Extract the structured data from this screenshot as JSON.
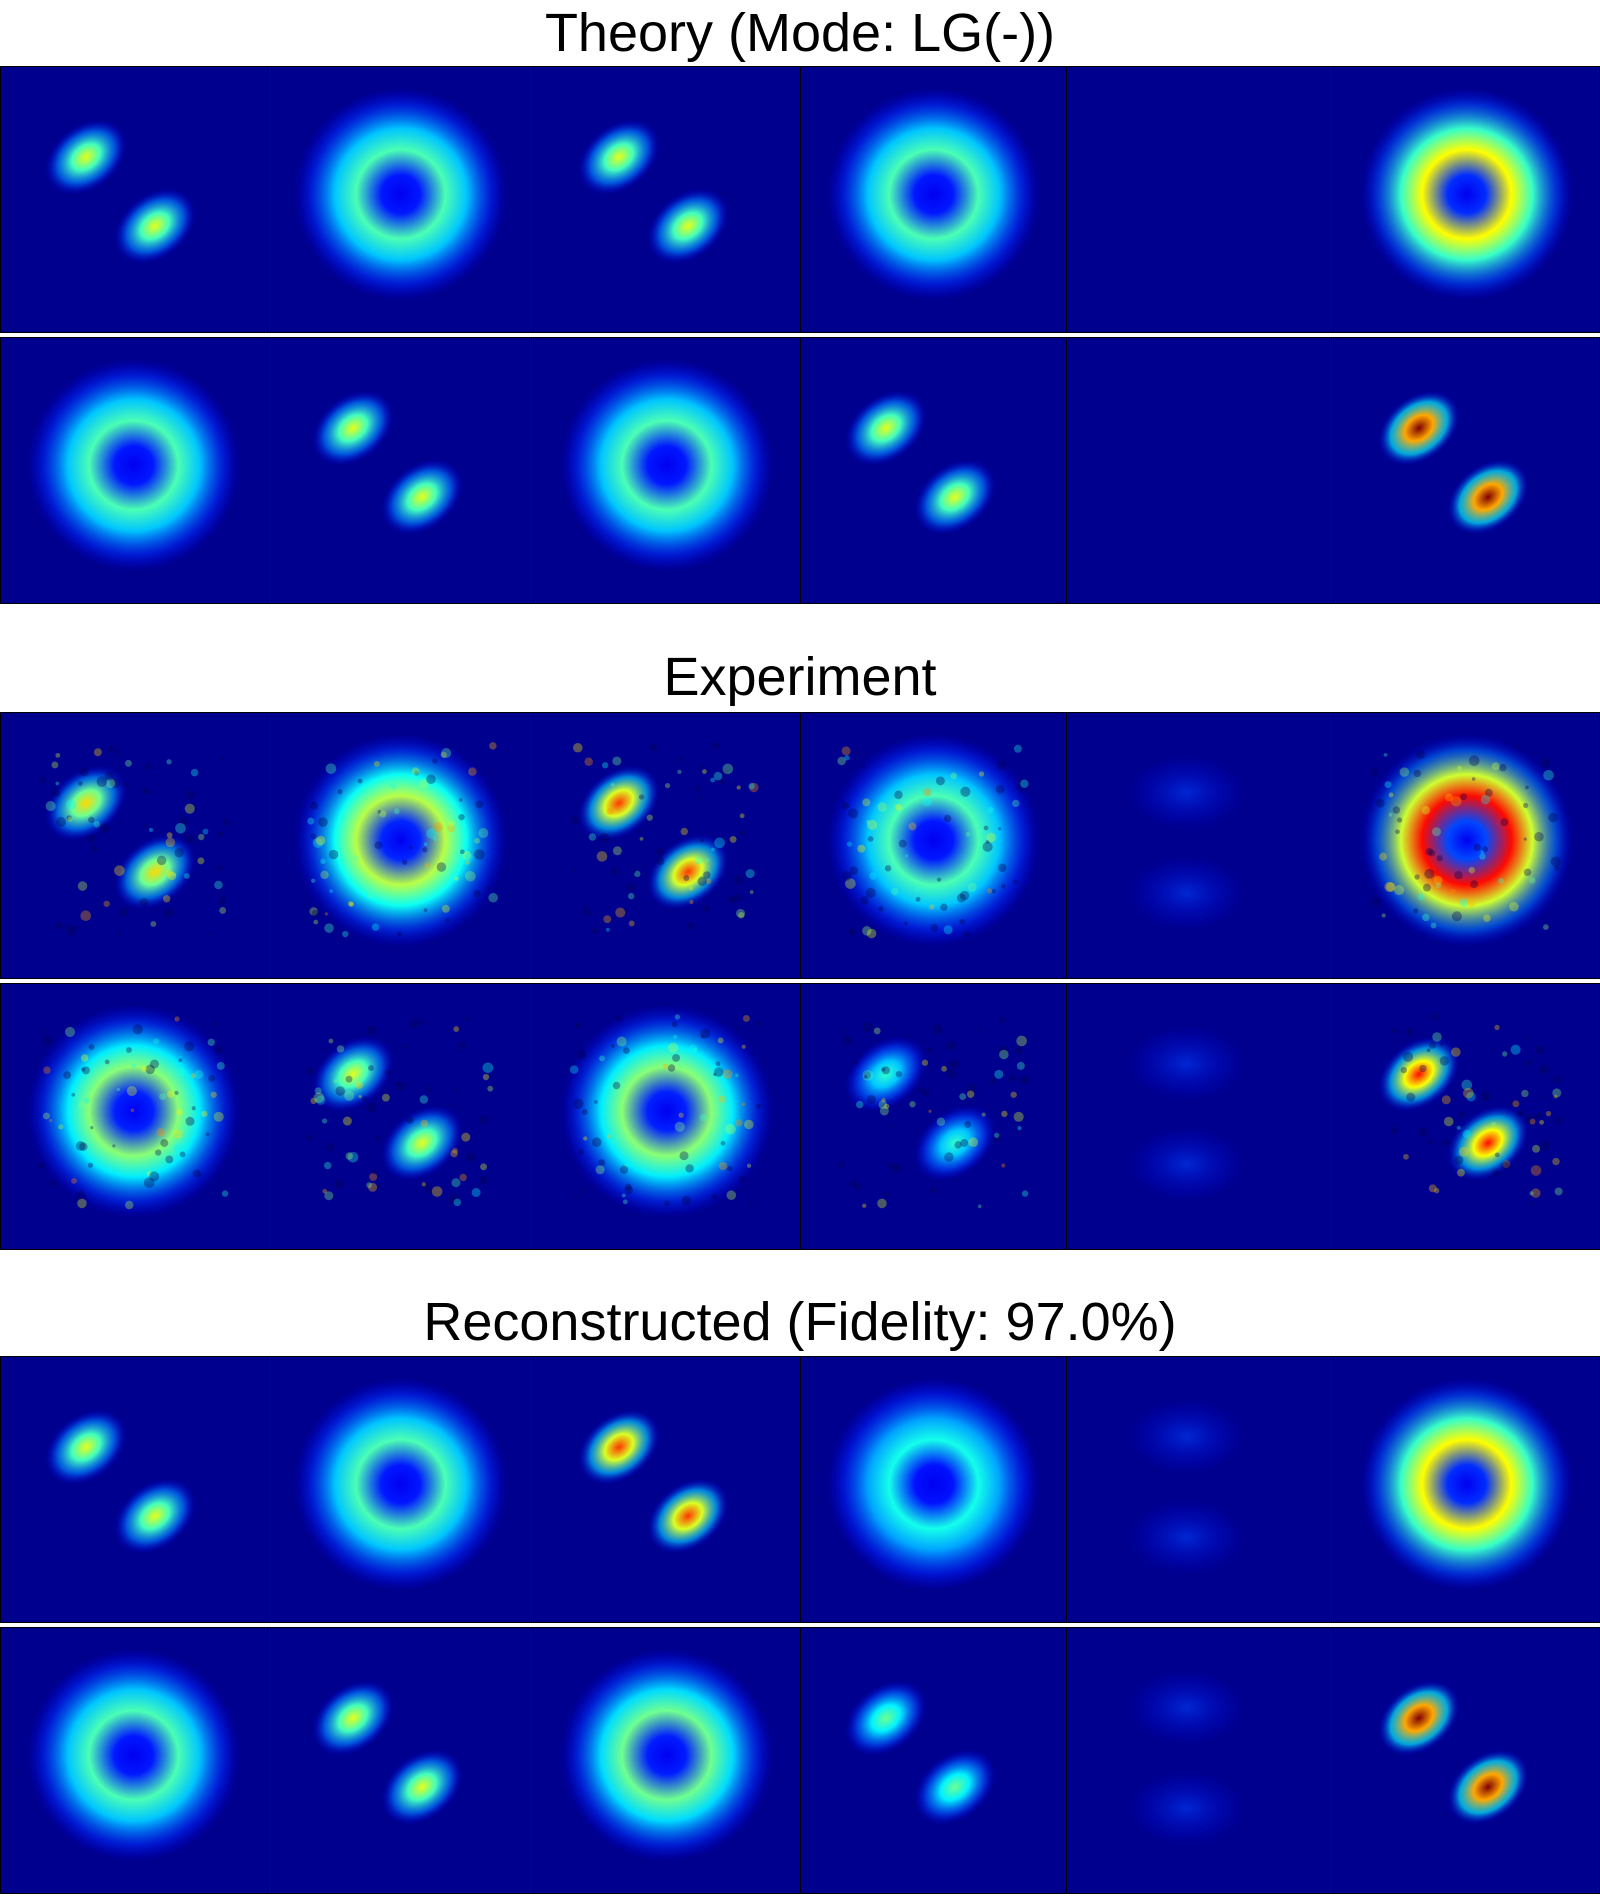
{
  "sections": [
    {
      "title": "Theory (Mode: LG(-))",
      "rows": [
        {
          "panels": [
            {
              "pattern": "lobes",
              "peak": 0.55
            },
            {
              "pattern": "donut",
              "peak": 0.38
            },
            {
              "pattern": "lobes",
              "peak": 0.55
            },
            {
              "pattern": "donut",
              "peak": 0.38
            },
            {
              "pattern": "dark",
              "peak": 0.0
            },
            {
              "pattern": "donut",
              "peak": 0.58
            }
          ]
        },
        {
          "panels": [
            {
              "pattern": "donut",
              "peak": 0.38
            },
            {
              "pattern": "lobes",
              "peak": 0.55
            },
            {
              "pattern": "donut",
              "peak": 0.38
            },
            {
              "pattern": "lobes",
              "peak": 0.55
            },
            {
              "pattern": "dark",
              "peak": 0.0
            },
            {
              "pattern": "lobes",
              "peak": 1.0
            }
          ]
        }
      ]
    },
    {
      "title": "Experiment",
      "rows": [
        {
          "panels": [
            {
              "pattern": "lobes",
              "peak": 0.62,
              "noisy": true
            },
            {
              "pattern": "donut",
              "peak": 0.5,
              "noisy": true
            },
            {
              "pattern": "lobes",
              "peak": 0.8,
              "noisy": true
            },
            {
              "pattern": "donut",
              "peak": 0.38,
              "noisy": true
            },
            {
              "pattern": "faint",
              "peak": 0.06
            },
            {
              "pattern": "donut",
              "peak": 0.85,
              "noisy": true
            }
          ]
        },
        {
          "panels": [
            {
              "pattern": "donut",
              "peak": 0.45,
              "noisy": true
            },
            {
              "pattern": "lobes",
              "peak": 0.55,
              "noisy": true
            },
            {
              "pattern": "donut",
              "peak": 0.45,
              "noisy": true
            },
            {
              "pattern": "lobes",
              "peak": 0.35,
              "noisy": true
            },
            {
              "pattern": "faint",
              "peak": 0.05
            },
            {
              "pattern": "lobes",
              "peak": 0.85,
              "noisy": true
            }
          ]
        }
      ]
    },
    {
      "title": "Reconstructed (Fidelity: 97.0%)",
      "rows": [
        {
          "panels": [
            {
              "pattern": "lobes",
              "peak": 0.55
            },
            {
              "pattern": "donut",
              "peak": 0.38
            },
            {
              "pattern": "lobes",
              "peak": 0.8
            },
            {
              "pattern": "donut",
              "peak": 0.32
            },
            {
              "pattern": "faint",
              "peak": 0.03
            },
            {
              "pattern": "donut",
              "peak": 0.58
            }
          ]
        },
        {
          "panels": [
            {
              "pattern": "donut",
              "peak": 0.38
            },
            {
              "pattern": "lobes",
              "peak": 0.55
            },
            {
              "pattern": "donut",
              "peak": 0.42
            },
            {
              "pattern": "lobes",
              "peak": 0.42
            },
            {
              "pattern": "faint",
              "peak": 0.03
            },
            {
              "pattern": "lobes",
              "peak": 1.0
            }
          ]
        }
      ]
    }
  ]
}
